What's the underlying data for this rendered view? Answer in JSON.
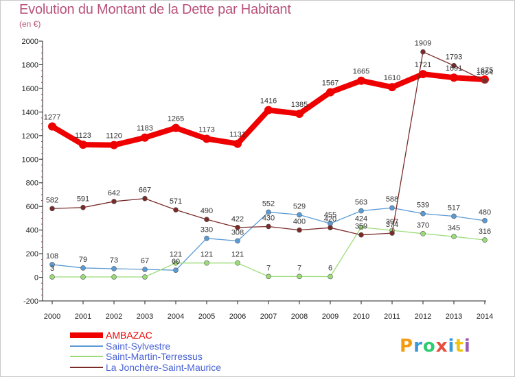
{
  "header": {
    "title": "Evolution du Montant de la Dette par Habitant",
    "subtitle": "(en €)"
  },
  "logo": {
    "text": "Proxiti"
  },
  "chart_data": {
    "type": "line",
    "title": "Evolution du Montant de la Dette par Habitant",
    "subtitle": "(en €)",
    "xlabel": "",
    "ylabel": "",
    "x": [
      "2000",
      "2001",
      "2002",
      "2003",
      "2004",
      "2005",
      "2006",
      "2007",
      "2008",
      "2009",
      "2010",
      "2011",
      "2012",
      "2013",
      "2014"
    ],
    "ylim": [
      -200,
      2000
    ],
    "yticks": [
      -200,
      0,
      200,
      400,
      600,
      800,
      1000,
      1200,
      1400,
      1600,
      1800,
      2000
    ],
    "grid": false,
    "legend_position": "bottom-left",
    "series": [
      {
        "name": "AMBAZAC",
        "color": "#ee0000",
        "values": [
          1277,
          1123,
          1120,
          1183,
          1265,
          1173,
          1131,
          1416,
          1385,
          1567,
          1665,
          1610,
          1721,
          1691,
          1675
        ],
        "labels": [
          "1277",
          "1123",
          "1120",
          "1183",
          "1265",
          "1173",
          "1131",
          "1416",
          "1385",
          "1567",
          "1665",
          "1610",
          "1721",
          "1691",
          "1675"
        ]
      },
      {
        "name": "Saint-Sylvestre",
        "color": "#5b9bd5",
        "values": [
          108,
          79,
          73,
          67,
          60,
          330,
          308,
          552,
          529,
          455,
          563,
          588,
          539,
          517,
          480
        ],
        "labels": [
          "108",
          "79",
          "73",
          "67",
          "60",
          "330",
          "308",
          "552",
          "529",
          "455",
          "563",
          "588",
          "539",
          "517",
          "480"
        ]
      },
      {
        "name": "Saint-Martin-Terressus",
        "color": "#9bdc78",
        "values": [
          3,
          3,
          3,
          3,
          121,
          121,
          121,
          7,
          7,
          6,
          424,
          397,
          370,
          345,
          316
        ],
        "labels": [
          "3",
          "",
          "",
          "",
          "121",
          "121",
          "121",
          "7",
          "7",
          "6",
          "424",
          "397",
          "370",
          "345",
          "316"
        ]
      },
      {
        "name": "La Jonchère-Saint-Maurice",
        "color": "#7b2a2a",
        "values": [
          582,
          591,
          642,
          667,
          571,
          490,
          422,
          430,
          400,
          420,
          359,
          374,
          1909,
          1793,
          1664
        ],
        "labels": [
          "582",
          "591",
          "642",
          "667",
          "571",
          "490",
          "422",
          "430",
          "400",
          "420",
          "359",
          "374",
          "1909",
          "1793",
          "1664"
        ]
      }
    ]
  }
}
